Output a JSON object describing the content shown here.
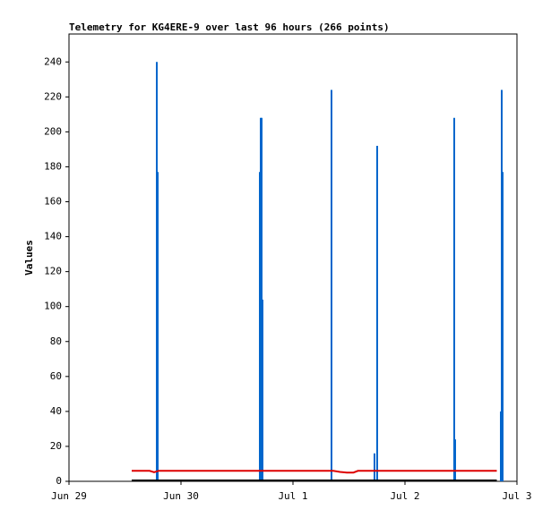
{
  "chart_data": {
    "type": "line",
    "title": "Telemetry for KG4ERE-9 over last 96 hours (266 points)",
    "y_label": "Values",
    "xlim": [
      0,
      4
    ],
    "xticks": [
      {
        "value": 0,
        "label": "Jun 29"
      },
      {
        "value": 1,
        "label": "Jun 30"
      },
      {
        "value": 2,
        "label": "Jul 1"
      },
      {
        "value": 3,
        "label": "Jul 2"
      },
      {
        "value": 4,
        "label": "Jul 3"
      }
    ],
    "ylim": [
      0,
      256
    ],
    "yticks": [
      0,
      20,
      40,
      60,
      80,
      100,
      120,
      140,
      160,
      180,
      200,
      220,
      240
    ],
    "grid": false,
    "series": [
      {
        "color": "#0066cc",
        "style": "impulses",
        "x": [
          0.784,
          0.792,
          1.704,
          1.712,
          1.72,
          1.728,
          2.344,
          2.728,
          2.752,
          3.44,
          3.448,
          3.856,
          3.864,
          3.872
        ],
        "values": [
          240,
          177,
          177,
          208,
          208,
          104,
          224,
          16,
          192,
          208,
          24,
          40,
          224,
          177
        ]
      },
      {
        "color": "#dd0000",
        "style": "line",
        "x": [
          0.56,
          0.72,
          0.76,
          0.8,
          2.36,
          2.42,
          2.48,
          2.54,
          2.58,
          3.82
        ],
        "values": [
          6,
          6,
          5.2,
          6,
          6,
          5.4,
          5,
          5,
          6,
          6
        ]
      },
      {
        "color": "#000000",
        "style": "line",
        "x": [
          0.56,
          3.82
        ],
        "values": [
          0.5,
          0.5
        ]
      }
    ]
  }
}
